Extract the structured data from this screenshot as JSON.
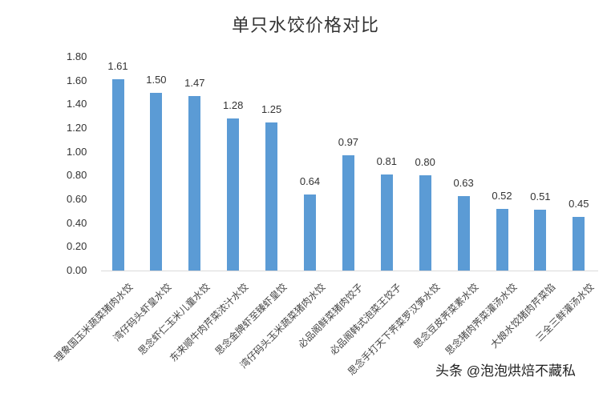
{
  "chart_data": {
    "type": "bar",
    "title": "单只水饺价格对比",
    "xlabel": "",
    "ylabel": "",
    "ylim": [
      0,
      1.8
    ],
    "yticks": [
      "0.00",
      "0.20",
      "0.40",
      "0.60",
      "0.80",
      "1.00",
      "1.20",
      "1.40",
      "1.60",
      "1.80"
    ],
    "grid": false,
    "legend": null,
    "bar_color": "#5b9bd5",
    "categories": [
      "理象国玉米蔬菜猪肉水饺",
      "湾仔码头虾皇水饺",
      "思念虾仁玉米儿童水饺",
      "东来顺牛肉芹菜浓汁水饺",
      "思念金牌虾至臻虾皇饺",
      "湾仔码头玉米蔬菜猪肉水饺",
      "必品阁鲜菜猪肉饺子",
      "必品阁韩式泡菜王饺子",
      "思念手打天下荠菜罗汉笋水饺",
      "思念豆皮荠菜素水饺",
      "思念猪肉荠菜灌汤水饺",
      "大娘水饺猪肉芹菜馅",
      "三全三鲜灌汤水饺"
    ],
    "values": [
      1.61,
      1.5,
      1.47,
      1.28,
      1.25,
      0.64,
      0.97,
      0.81,
      0.8,
      0.63,
      0.52,
      0.51,
      0.45
    ],
    "value_labels": [
      "1.61",
      "1.50",
      "1.47",
      "1.28",
      "1.25",
      "0.64",
      "0.97",
      "0.81",
      "0.80",
      "0.63",
      "0.52",
      "0.51",
      "0.45"
    ]
  },
  "watermark": {
    "text": "头条 @泡泡烘焙不藏私"
  }
}
